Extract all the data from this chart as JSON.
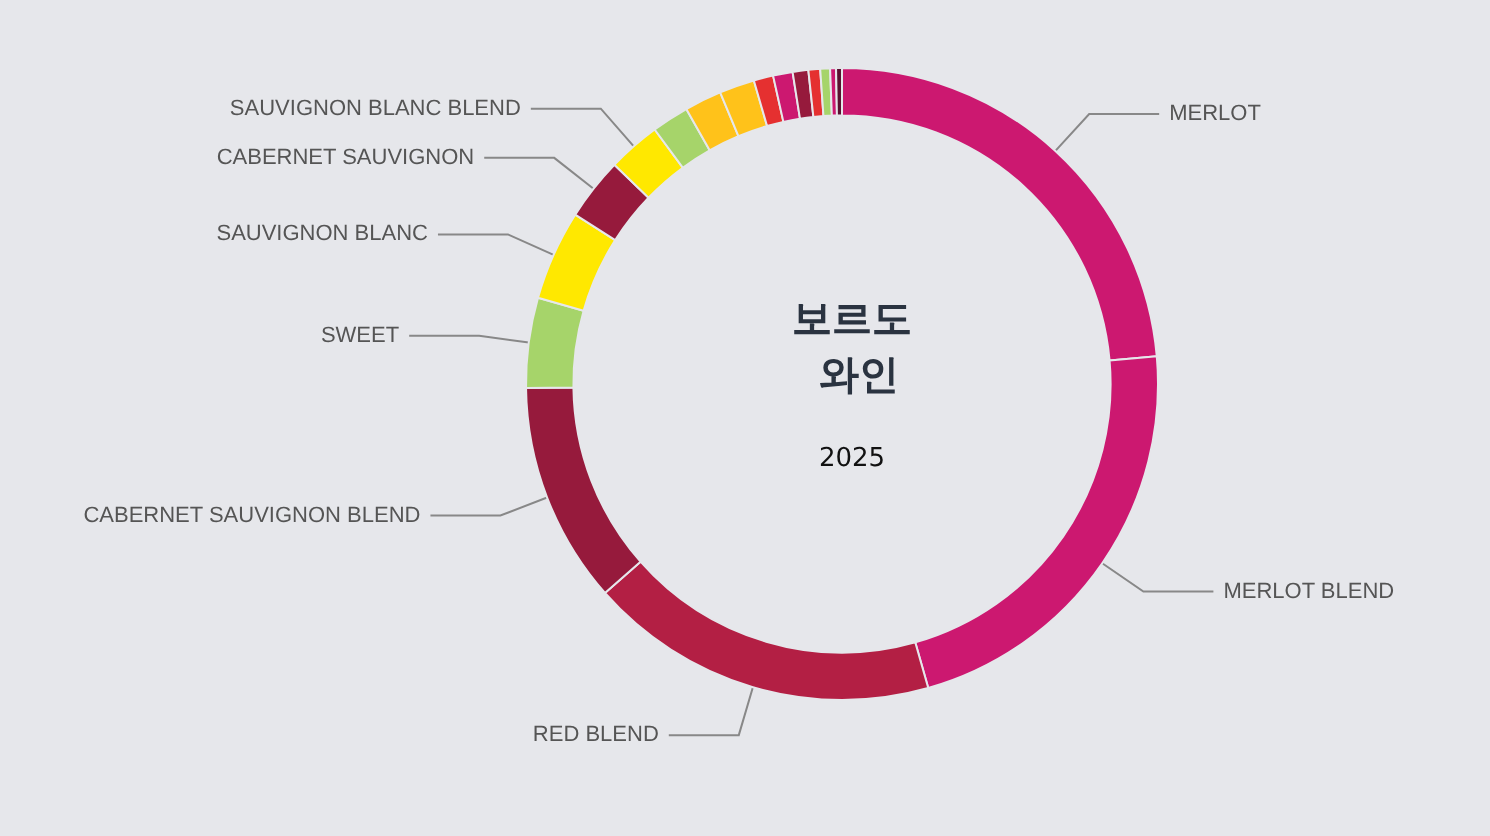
{
  "chart_data": {
    "type": "donut",
    "title": "보르도 와인",
    "subtitle": "2025",
    "categories": [
      "MERLOT",
      "MERLOT BLEND",
      "RED BLEND",
      "CABERNET SAUVIGNON BLEND",
      "SWEET",
      "SAUVIGNON BLANC",
      "CABERNET SAUVIGNON",
      "SAUVIGNON BLANC BLEND",
      null,
      null,
      null,
      null,
      null,
      null,
      null,
      null,
      null,
      null
    ],
    "values": [
      23.6,
      22,
      17.9,
      11.3,
      4.6,
      4.6,
      3.2,
      2.7,
      1.9,
      1.9,
      1.8,
      1.0,
      1.0,
      0.8,
      0.6,
      0.5,
      0.3,
      0.3
    ],
    "colors": [
      "#cc1870",
      "#cc1870",
      "#b31f44",
      "#961a3c",
      "#a6d46a",
      "#ffe800",
      "#961a3c",
      "#ffe800",
      "#a6d46a",
      "#ffc21a",
      "#ffc21a",
      "#e53030",
      "#cc1870",
      "#961a3c",
      "#e53030",
      "#a6d46a",
      "#cc1870",
      "#5a1030"
    ],
    "legend": false
  }
}
